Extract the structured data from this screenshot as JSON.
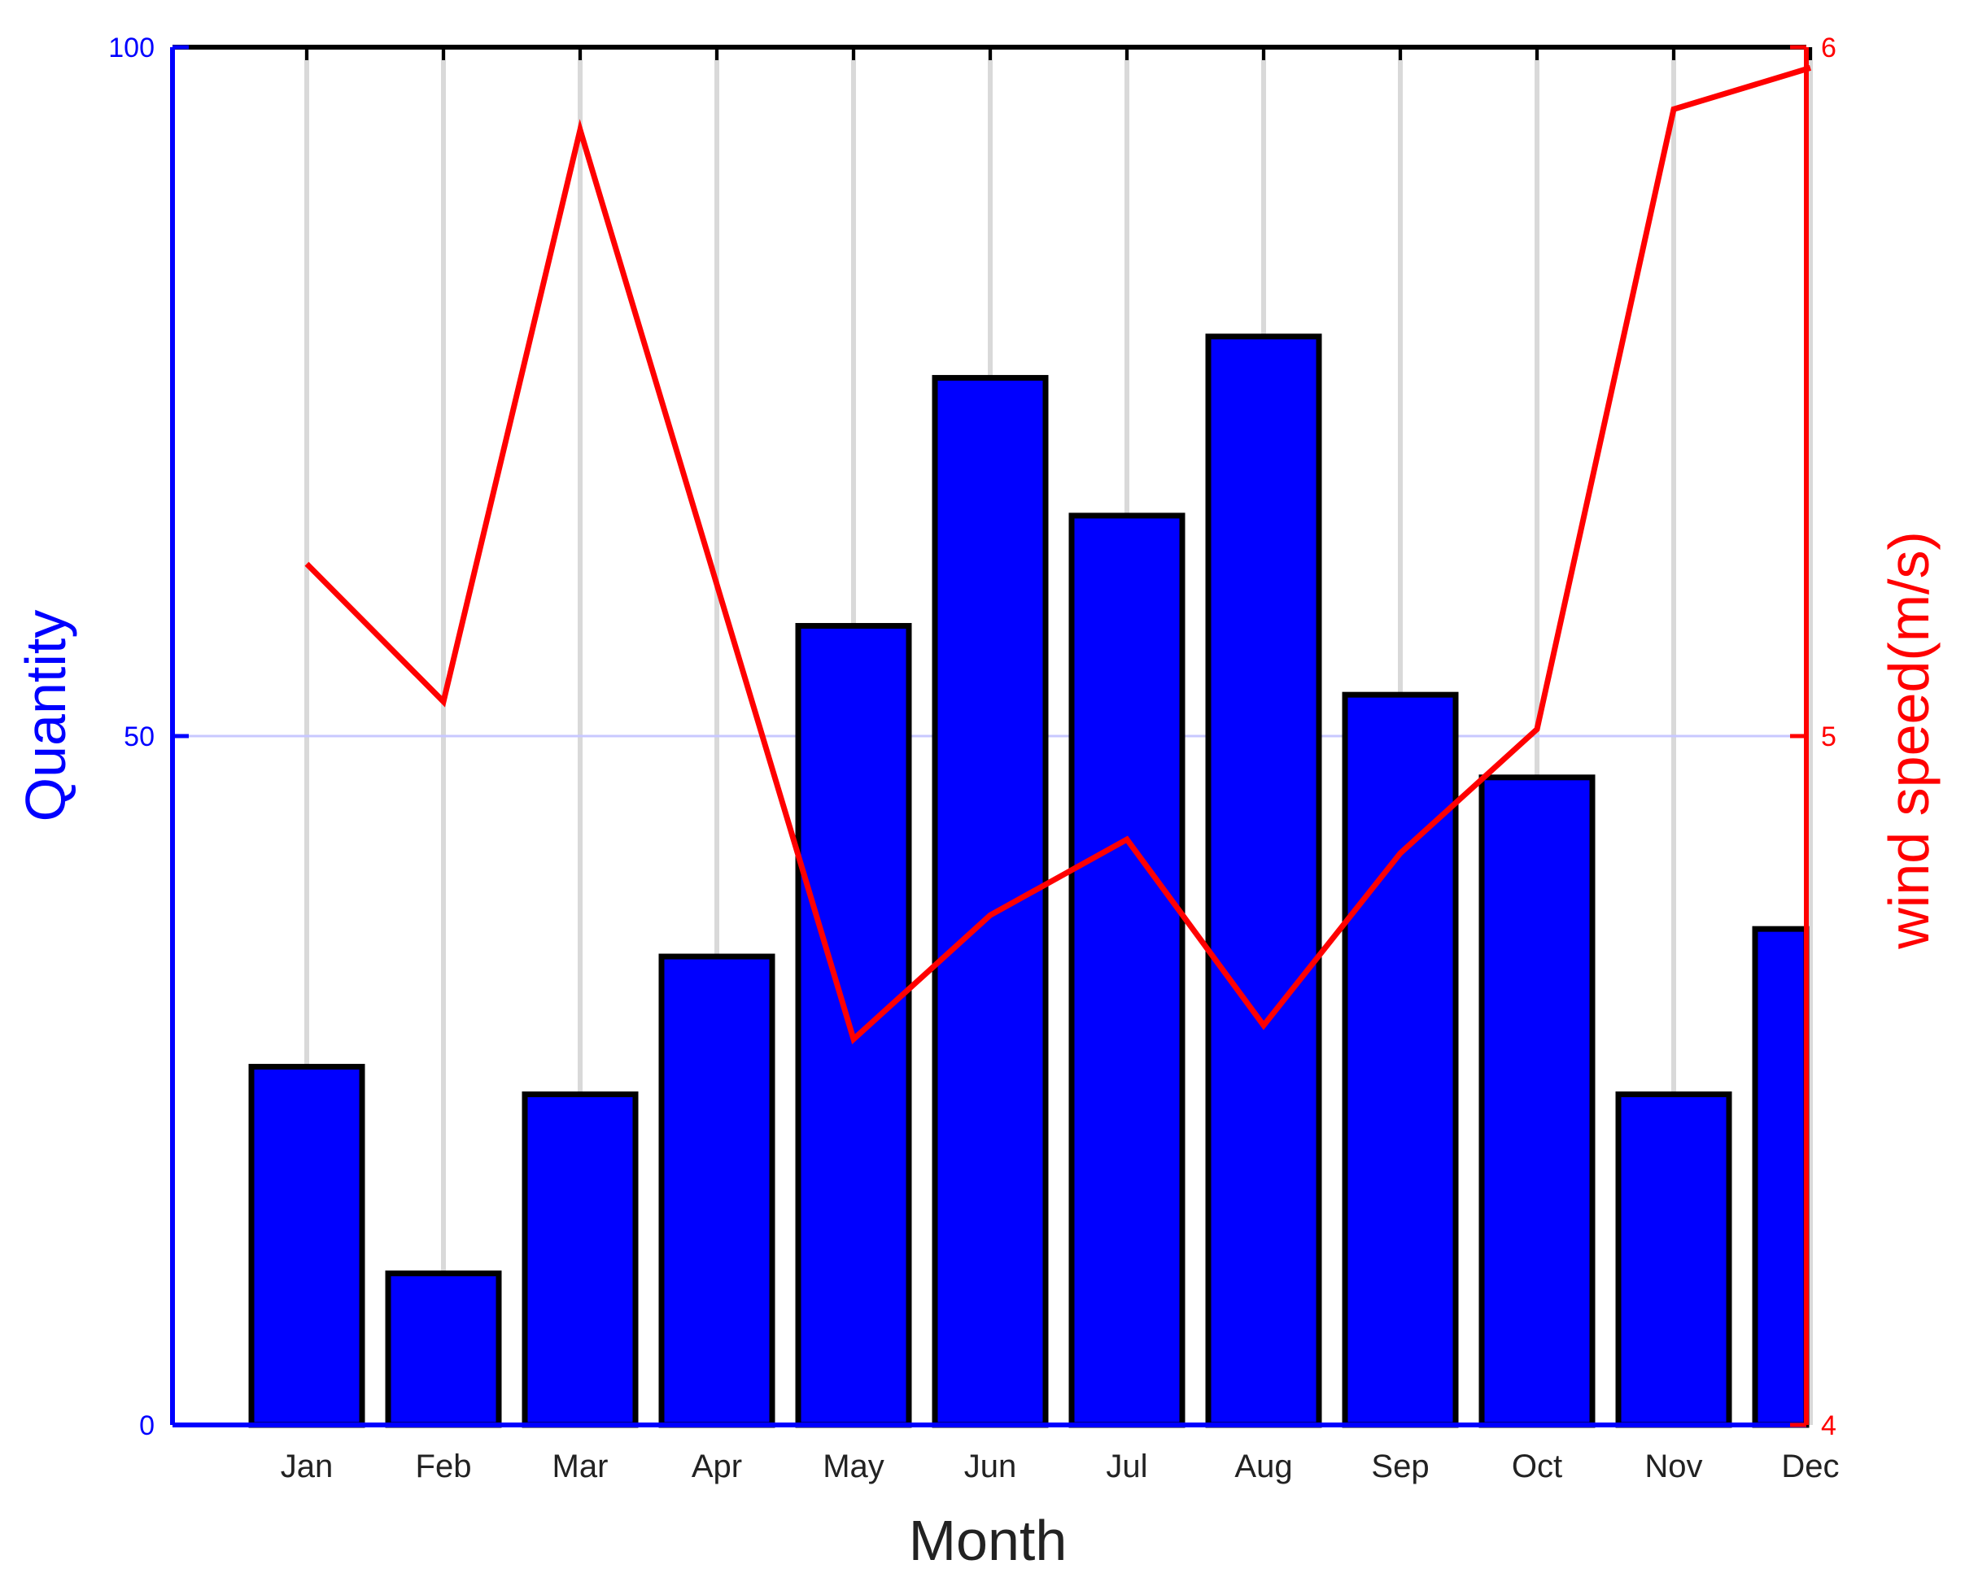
{
  "chart_data": {
    "type": "bar",
    "categories": [
      "Jan",
      "Feb",
      "Mar",
      "Apr",
      "May",
      "Jun",
      "Jul",
      "Aug",
      "Sep",
      "Oct",
      "Nov",
      "Dec"
    ],
    "series": [
      {
        "axis": "left",
        "type": "bar",
        "values": [
          26,
          11,
          24,
          34,
          58,
          76,
          66,
          79,
          53,
          47,
          24,
          36
        ]
      },
      {
        "axis": "right",
        "type": "line",
        "values": [
          5.25,
          5.05,
          5.88,
          5.22,
          4.56,
          4.74,
          4.85,
          4.58,
          4.83,
          5.01,
          5.91,
          5.97
        ]
      }
    ],
    "xlabel": "Month",
    "ylabel": "Quantity",
    "y2label": "wind speed(m/s)",
    "ylim": [
      0,
      100
    ],
    "y2lim": [
      4,
      6
    ],
    "yticks": [
      "0",
      "50",
      "100"
    ],
    "y2ticks": [
      "4",
      "5",
      "6"
    ],
    "grid": "vertical",
    "colors": {
      "bar_fill": "#0000ff",
      "bar_edge": "#000000",
      "line": "#ff0000",
      "left_axis": "#0000ff",
      "right_axis": "#ff0000",
      "grid": "#d9d9d9",
      "mid_gridline": "#c8c8ff"
    }
  }
}
